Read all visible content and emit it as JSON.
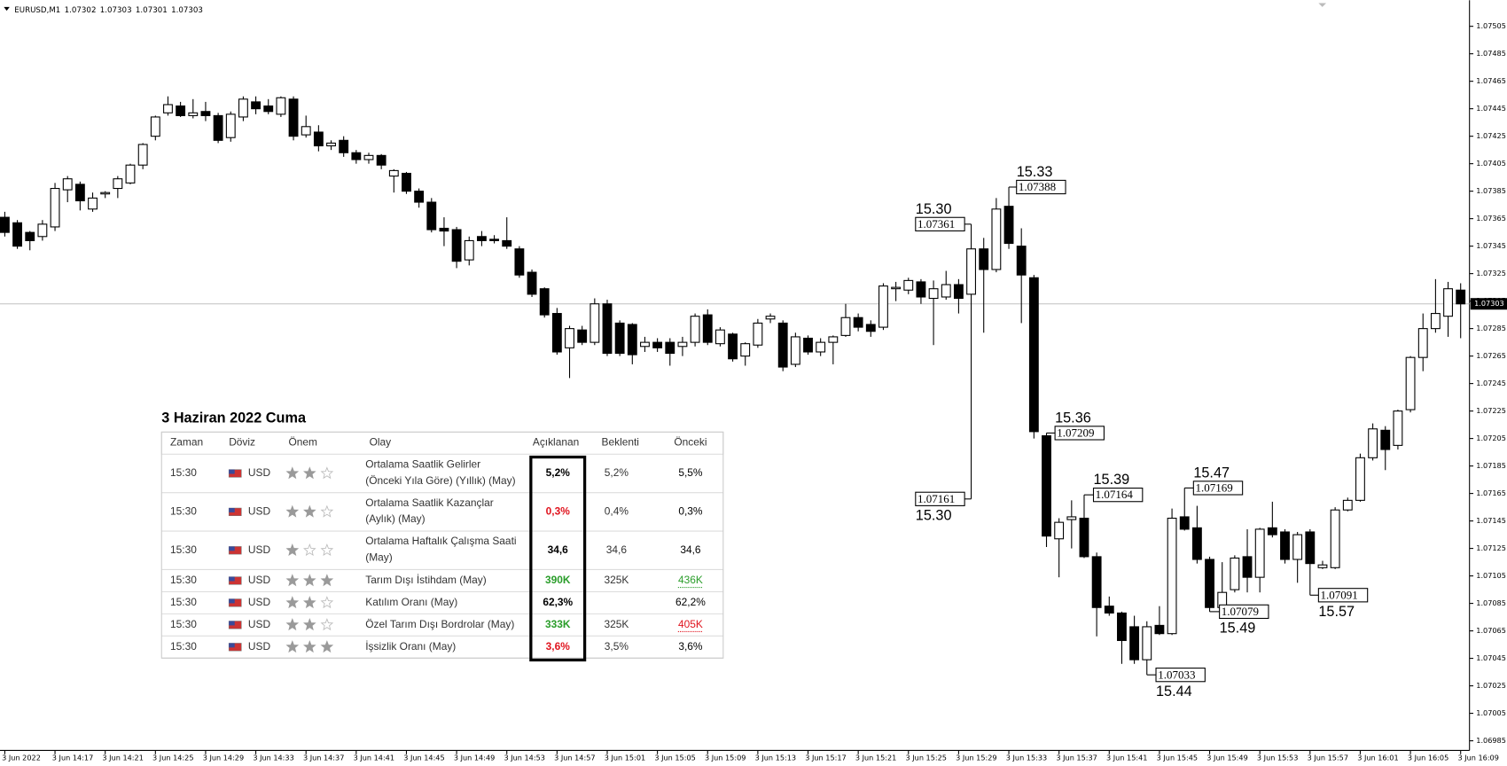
{
  "chart_data": {
    "type": "candlestick",
    "title": "EURUSD,M1",
    "header_ohlc": [
      1.07302,
      1.07303,
      1.07301,
      1.07303
    ],
    "last_price": 1.07303,
    "categories": [
      "3 Jun 2022",
      null,
      null,
      null,
      "3 Jun 14:17",
      null,
      null,
      null,
      "3 Jun 14:21",
      null,
      null,
      null,
      "3 Jun 14:25",
      null,
      null,
      null,
      "3 Jun 14:29",
      null,
      null,
      null,
      "3 Jun 14:33",
      null,
      null,
      null,
      "3 Jun 14:37",
      null,
      null,
      null,
      "3 Jun 14:41",
      null,
      null,
      null,
      "3 Jun 14:45",
      null,
      null,
      null,
      "3 Jun 14:49",
      null,
      null,
      null,
      "3 Jun 14:53",
      null,
      null,
      null,
      "3 Jun 14:57",
      null,
      null,
      null,
      "3 Jun 15:01",
      null,
      null,
      null,
      "3 Jun 15:05",
      null,
      null,
      null,
      "3 Jun 15:09",
      null,
      null,
      null,
      "3 Jun 15:13",
      null,
      null,
      null,
      "3 Jun 15:17",
      null,
      null,
      null,
      "3 Jun 15:21",
      null,
      null,
      null,
      "3 Jun 15:25",
      null,
      null,
      null,
      "3 Jun 15:29",
      null,
      null,
      null,
      "3 Jun 15:33",
      null,
      null,
      null,
      "3 Jun 15:37",
      null,
      null,
      null,
      "3 Jun 15:41",
      null,
      null,
      null,
      "3 Jun 15:45",
      null,
      null,
      null,
      "3 Jun 15:49",
      null,
      null,
      null,
      "3 Jun 15:53",
      null,
      null,
      null,
      "3 Jun 15:57",
      null,
      null,
      null,
      "3 Jun 16:01",
      null,
      null,
      null,
      "3 Jun 16:05",
      null,
      null,
      null,
      "3 Jun 16:09"
    ],
    "open": [
      1.07366,
      1.07362,
      1.07355,
      1.07352,
      1.07359,
      1.07386,
      1.0739,
      1.07372,
      1.07383,
      1.07387,
      1.07391,
      1.07404,
      1.07425,
      1.07442,
      1.07447,
      1.0744,
      1.07443,
      1.0744,
      1.07424,
      1.07439,
      1.0745,
      1.07447,
      1.07441,
      1.07452,
      1.07426,
      1.07428,
      1.07418,
      1.07422,
      1.07413,
      1.07408,
      1.07411,
      1.07396,
      1.07398,
      1.07385,
      1.07377,
      1.07358,
      1.07357,
      1.07335,
      1.07352,
      1.0735,
      1.07349,
      1.07343,
      1.07326,
      1.07314,
      1.07296,
      1.07271,
      1.07284,
      1.07275,
      1.07303,
      1.07289,
      1.07288,
      1.07272,
      1.07275,
      1.07275,
      1.07272,
      1.07275,
      1.07295,
      1.07274,
      1.07281,
      1.07265,
      1.07273,
      1.07292,
      1.07289,
      1.07259,
      1.07278,
      1.07268,
      1.07275,
      1.0728,
      1.07293,
      1.07288,
      1.07286,
      1.07314,
      1.07313,
      1.07319,
      1.07307,
      1.07308,
      1.07317,
      1.0731,
      1.07343,
      1.07328,
      1.07374,
      1.07345,
      1.07322,
      1.07207,
      1.07132,
      1.07146,
      1.07147,
      1.07119,
      1.07083,
      1.07078,
      1.07068,
      1.07044,
      1.07069,
      1.07063,
      1.07148,
      1.0714,
      1.07117,
      1.07082,
      1.07095,
      1.07119,
      1.07104,
      1.0714,
      1.07137,
      1.07117,
      1.07137,
      1.07111,
      1.07111,
      1.07153,
      1.0716,
      1.07191,
      1.07211,
      1.072,
      1.07226,
      1.07264,
      1.07285,
      1.07294,
      1.07313
    ],
    "high": [
      1.0737,
      1.07364,
      1.07356,
      1.07364,
      1.07391,
      1.07396,
      1.07392,
      1.07384,
      1.07385,
      1.07396,
      1.07405,
      1.0742,
      1.0744,
      1.07454,
      1.0745,
      1.07452,
      1.0745,
      1.07442,
      1.07443,
      1.07454,
      1.07454,
      1.07452,
      1.07454,
      1.07454,
      1.0744,
      1.07433,
      1.07422,
      1.07425,
      1.07415,
      1.07413,
      1.07412,
      1.07401,
      1.07399,
      1.07387,
      1.0738,
      1.07366,
      1.07359,
      1.07352,
      1.07356,
      1.07353,
      1.07366,
      1.07345,
      1.07328,
      1.07315,
      1.073,
      1.07287,
      1.07287,
      1.07307,
      1.07306,
      1.07291,
      1.07289,
      1.07279,
      1.07278,
      1.07278,
      1.07279,
      1.07296,
      1.07299,
      1.07286,
      1.07282,
      1.07275,
      1.07292,
      1.07296,
      1.07291,
      1.07282,
      1.0728,
      1.07278,
      1.0728,
      1.07303,
      1.07296,
      1.07291,
      1.07318,
      1.07319,
      1.07322,
      1.07321,
      1.0732,
      1.07327,
      1.07321,
      1.07361,
      1.07351,
      1.0738,
      1.07388,
      1.07358,
      1.07324,
      1.07209,
      1.07147,
      1.0716,
      1.07164,
      1.07122,
      1.0709,
      1.07079,
      1.07076,
      1.07072,
      1.07083,
      1.07154,
      1.07169,
      1.07156,
      1.07119,
      1.07115,
      1.0712,
      1.07139,
      1.0714,
      1.07159,
      1.07139,
      1.07137,
      1.07139,
      1.07116,
      1.07155,
      1.07162,
      1.07194,
      1.07216,
      1.07214,
      1.07226,
      1.07265,
      1.07296,
      1.07321,
      1.07319,
      1.07318
    ],
    "low": [
      1.07352,
      1.07343,
      1.07342,
      1.07349,
      1.07356,
      1.07377,
      1.07371,
      1.0737,
      1.0738,
      1.0738,
      1.0739,
      1.07401,
      1.07422,
      1.0744,
      1.07439,
      1.07438,
      1.07436,
      1.0742,
      1.07421,
      1.07436,
      1.07441,
      1.07441,
      1.07439,
      1.07422,
      1.07424,
      1.07414,
      1.07415,
      1.0741,
      1.07405,
      1.07405,
      1.07401,
      1.07384,
      1.07383,
      1.07373,
      1.07355,
      1.07345,
      1.07329,
      1.07331,
      1.07345,
      1.07347,
      1.07343,
      1.07322,
      1.07308,
      1.07293,
      1.07266,
      1.07249,
      1.07273,
      1.07273,
      1.07265,
      1.07265,
      1.07259,
      1.07268,
      1.07268,
      1.07258,
      1.07265,
      1.07272,
      1.07273,
      1.07272,
      1.07261,
      1.07258,
      1.07271,
      1.07289,
      1.07254,
      1.07257,
      1.07266,
      1.07265,
      1.07259,
      1.07279,
      1.07283,
      1.07279,
      1.07284,
      1.07305,
      1.0731,
      1.07303,
      1.07273,
      1.07306,
      1.07296,
      1.07161,
      1.07282,
      1.07326,
      1.07343,
      1.07289,
      1.07205,
      1.07126,
      1.07104,
      1.07125,
      1.07118,
      1.07061,
      1.07076,
      1.07041,
      1.07041,
      1.07033,
      1.07062,
      1.07062,
      1.07138,
      1.07114,
      1.07079,
      1.07078,
      1.07093,
      1.07093,
      1.07093,
      1.07133,
      1.07114,
      1.071,
      1.07091,
      1.0711,
      1.0711,
      1.07152,
      1.07159,
      1.07189,
      1.07182,
      1.07197,
      1.07224,
      1.07254,
      1.07282,
      1.07279,
      1.07278
    ],
    "close": [
      1.07355,
      1.07345,
      1.07349,
      1.07361,
      1.07387,
      1.07394,
      1.07378,
      1.0738,
      1.07384,
      1.07394,
      1.07404,
      1.07419,
      1.07439,
      1.07448,
      1.0744,
      1.07442,
      1.0744,
      1.07422,
      1.07441,
      1.07452,
      1.07445,
      1.07443,
      1.07453,
      1.07425,
      1.07432,
      1.07418,
      1.0742,
      1.07413,
      1.07408,
      1.07411,
      1.07404,
      1.074,
      1.07385,
      1.07377,
      1.07357,
      1.07356,
      1.07334,
      1.07349,
      1.07349,
      1.07349,
      1.07345,
      1.07324,
      1.0731,
      1.07295,
      1.07268,
      1.07285,
      1.07275,
      1.07303,
      1.07267,
      1.07267,
      1.07266,
      1.07275,
      1.07271,
      1.07267,
      1.07275,
      1.07294,
      1.07275,
      1.07284,
      1.07263,
      1.07274,
      1.07289,
      1.07294,
      1.07257,
      1.07279,
      1.07268,
      1.07275,
      1.07279,
      1.07293,
      1.07286,
      1.07283,
      1.07316,
      1.07315,
      1.0732,
      1.07308,
      1.07314,
      1.07317,
      1.07307,
      1.07343,
      1.07328,
      1.07372,
      1.07347,
      1.07324,
      1.0721,
      1.07134,
      1.07144,
      1.07148,
      1.07119,
      1.07082,
      1.07078,
      1.07058,
      1.07044,
      1.07068,
      1.07063,
      1.07147,
      1.07139,
      1.07117,
      1.07082,
      1.07093,
      1.07118,
      1.07104,
      1.07139,
      1.07135,
      1.07117,
      1.07135,
      1.07114,
      1.07113,
      1.07153,
      1.0716,
      1.07191,
      1.07212,
      1.07197,
      1.07225,
      1.07264,
      1.07285,
      1.07296,
      1.07314,
      1.07303
    ],
    "ylim": [
      1.06978,
      1.07524
    ],
    "yticks": [
      1.07505,
      1.07485,
      1.07465,
      1.07445,
      1.07425,
      1.07405,
      1.07385,
      1.07365,
      1.07345,
      1.07325,
      1.07305,
      1.07285,
      1.07265,
      1.07245,
      1.07225,
      1.07205,
      1.07185,
      1.07165,
      1.07145,
      1.07125,
      1.07105,
      1.07085,
      1.07065,
      1.07045,
      1.07025,
      1.07005,
      1.06985
    ],
    "grid": false,
    "bull_color": "#ffffff",
    "bear_color": "#000000",
    "annotations": [
      {
        "label": "15.30",
        "value": 1.07361
      },
      {
        "label": "15.33",
        "value": 1.07388
      },
      {
        "label": "15.30",
        "value": 1.07161
      },
      {
        "label": "15.36",
        "value": 1.07209
      },
      {
        "label": "15.39",
        "value": 1.07164
      },
      {
        "label": "15.47",
        "value": 1.07169
      },
      {
        "label": "15.49",
        "value": 1.07079
      },
      {
        "label": "15.57",
        "value": 1.07091
      },
      {
        "label": "15.44",
        "value": 1.07033
      }
    ]
  },
  "calendar": {
    "title": "3 Haziran 2022 Cuma",
    "columns": [
      "Zaman",
      "Döviz",
      "Önem",
      "Olay",
      "Açıklanan",
      "Beklenti",
      "Önceki"
    ],
    "rows": [
      {
        "time": "15:30",
        "currency": "USD",
        "importance": 2,
        "event": [
          "Ortalama Saatlik Gelirler",
          "(Önceki Yıla Göre) (Yıllık) (May)"
        ],
        "actual": "5,2%",
        "actual_color": "#000000",
        "forecast": "5,2%",
        "previous": "5,5%",
        "previous_color": "#000000",
        "previous_revised": false
      },
      {
        "time": "15:30",
        "currency": "USD",
        "importance": 2,
        "event": [
          "Ortalama Saatlik Kazançlar",
          "(Aylık) (May)"
        ],
        "actual": "0,3%",
        "actual_color": "#e0141e",
        "forecast": "0,4%",
        "previous": "0,3%",
        "previous_color": "#000000",
        "previous_revised": false
      },
      {
        "time": "15:30",
        "currency": "USD",
        "importance": 1,
        "event": [
          "Ortalama Haftalık Çalışma Saati",
          "(May)"
        ],
        "actual": "34,6",
        "actual_color": "#000000",
        "forecast": "34,6",
        "previous": "34,6",
        "previous_color": "#000000",
        "previous_revised": false
      },
      {
        "time": "15:30",
        "currency": "USD",
        "importance": 3,
        "event": [
          "Tarım Dışı İstihdam (May)"
        ],
        "actual": "390K",
        "actual_color": "#2a9d2a",
        "forecast": "325K",
        "previous": "436K",
        "previous_color": "#2a9d2a",
        "previous_revised": true
      },
      {
        "time": "15:30",
        "currency": "USD",
        "importance": 2,
        "event": [
          "Katılım Oranı (May)"
        ],
        "actual": "62,3%",
        "actual_color": "#000000",
        "forecast": null,
        "previous": "62,2%",
        "previous_color": "#000000",
        "previous_revised": false
      },
      {
        "time": "15:30",
        "currency": "USD",
        "importance": 2,
        "event": [
          "Özel Tarım Dışı Bordrolar (May)"
        ],
        "actual": "333K",
        "actual_color": "#2a9d2a",
        "forecast": "325K",
        "previous": "405K",
        "previous_color": "#e0141e",
        "previous_revised": true
      },
      {
        "time": "15:30",
        "currency": "USD",
        "importance": 3,
        "event": [
          "İşsizlik Oranı (May)"
        ],
        "actual": "3,6%",
        "actual_color": "#e0141e",
        "forecast": "3,5%",
        "previous": "3,6%",
        "previous_color": "#000000",
        "previous_revised": false
      }
    ]
  }
}
